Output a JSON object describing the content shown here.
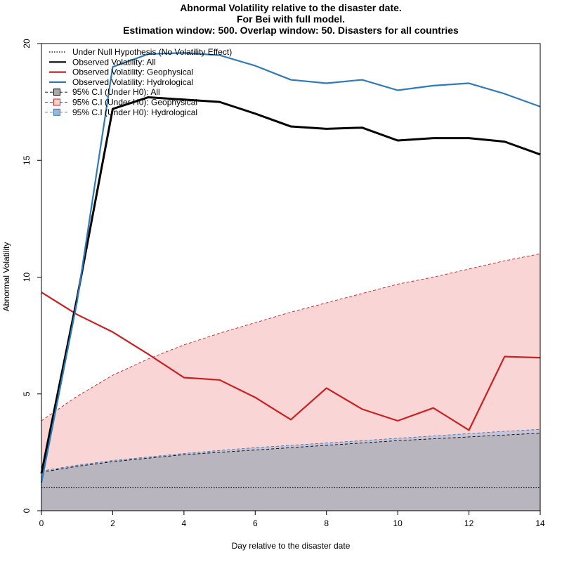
{
  "titles": [
    "Abnormal Volatility relative to the disaster date.",
    "For Bei with full model.",
    "Estimation window: 500. Overlap window: 50. Disasters for all countries"
  ],
  "chart_data": {
    "type": "line",
    "title": "Abnormal Volatility relative to the disaster date.",
    "subtitle": "For Bei with full model.",
    "subtitle2": "Estimation window: 500. Overlap window: 50. Disasters for all countries",
    "xlabel": "Day relative to the disaster date",
    "ylabel": "Abnormal Volatility",
    "xlim": [
      0,
      14
    ],
    "ylim": [
      0,
      20
    ],
    "x_ticks": [
      0,
      2,
      4,
      6,
      8,
      10,
      12,
      14
    ],
    "y_ticks": [
      0,
      5,
      10,
      15,
      20
    ],
    "legend_position": "top-left",
    "grid": false,
    "x": [
      0,
      1,
      2,
      3,
      4,
      5,
      6,
      7,
      8,
      9,
      10,
      11,
      12,
      13,
      14
    ],
    "null_value": 1.0,
    "series": [
      {
        "name": "Observed Volatility: All",
        "color": "#000000",
        "values": [
          1.6,
          9.1,
          17.2,
          17.7,
          17.6,
          17.5,
          17.0,
          16.45,
          16.35,
          16.4,
          15.85,
          15.95,
          15.95,
          15.8,
          15.25
        ]
      },
      {
        "name": "Observed Volatility: Geophysical",
        "color": "#cc1f1f",
        "values": [
          9.35,
          8.4,
          7.65,
          6.7,
          5.7,
          5.6,
          4.85,
          3.9,
          5.25,
          4.35,
          3.85,
          4.4,
          3.45,
          6.6,
          6.55
        ]
      },
      {
        "name": "Observed Volatility: Hydrological",
        "color": "#2f7ab8",
        "values": [
          1.2,
          8.95,
          19.0,
          19.55,
          19.6,
          19.5,
          19.05,
          18.45,
          18.3,
          18.45,
          18.0,
          18.2,
          18.3,
          17.85,
          17.3
        ]
      }
    ],
    "confidence_bands": [
      {
        "name": "95% C.I (Under H0): All",
        "color": "#000000",
        "fill": "#a9a9a9",
        "upper": [
          1.65,
          1.9,
          2.1,
          2.25,
          2.4,
          2.5,
          2.6,
          2.7,
          2.8,
          2.9,
          3.0,
          3.08,
          3.16,
          3.24,
          3.32
        ]
      },
      {
        "name": "95% C.I (Under H0): Geophysical",
        "color": "#cc1f1f",
        "fill": "#f9d0d0",
        "upper": [
          3.85,
          4.9,
          5.8,
          6.5,
          7.1,
          7.6,
          8.05,
          8.5,
          8.9,
          9.3,
          9.7,
          10.0,
          10.35,
          10.7,
          11.0
        ]
      },
      {
        "name": "95% C.I (Under H0): Hydrological",
        "color": "#2f7ab8",
        "fill": "#a0b4d8",
        "upper": [
          1.7,
          1.95,
          2.15,
          2.3,
          2.45,
          2.58,
          2.7,
          2.8,
          2.9,
          3.0,
          3.1,
          3.2,
          3.3,
          3.4,
          3.48
        ]
      }
    ],
    "legend": [
      {
        "label": "Under Null Hypothesis (No Volatility Effect)",
        "style": "dotted",
        "color": "#000000"
      },
      {
        "label": "Observed Volatility: All",
        "style": "solid",
        "color": "#000000"
      },
      {
        "label": "Observed Volatility: Geophysical",
        "style": "solid",
        "color": "#cc1f1f"
      },
      {
        "label": "Observed Volatility: Hydrological",
        "style": "solid",
        "color": "#2f7ab8"
      },
      {
        "label": "95% C.I (Under H0): All",
        "style": "box",
        "color": "#000000",
        "fill": "#a9a9a9"
      },
      {
        "label": "95% C.I (Under H0): Geophysical",
        "style": "box",
        "color": "#cc1f1f",
        "fill": "#f9d0d0"
      },
      {
        "label": "95% C.I (Under H0): Hydrological",
        "style": "box",
        "color": "#2f7ab8",
        "fill": "#a0b4d8"
      }
    ]
  }
}
